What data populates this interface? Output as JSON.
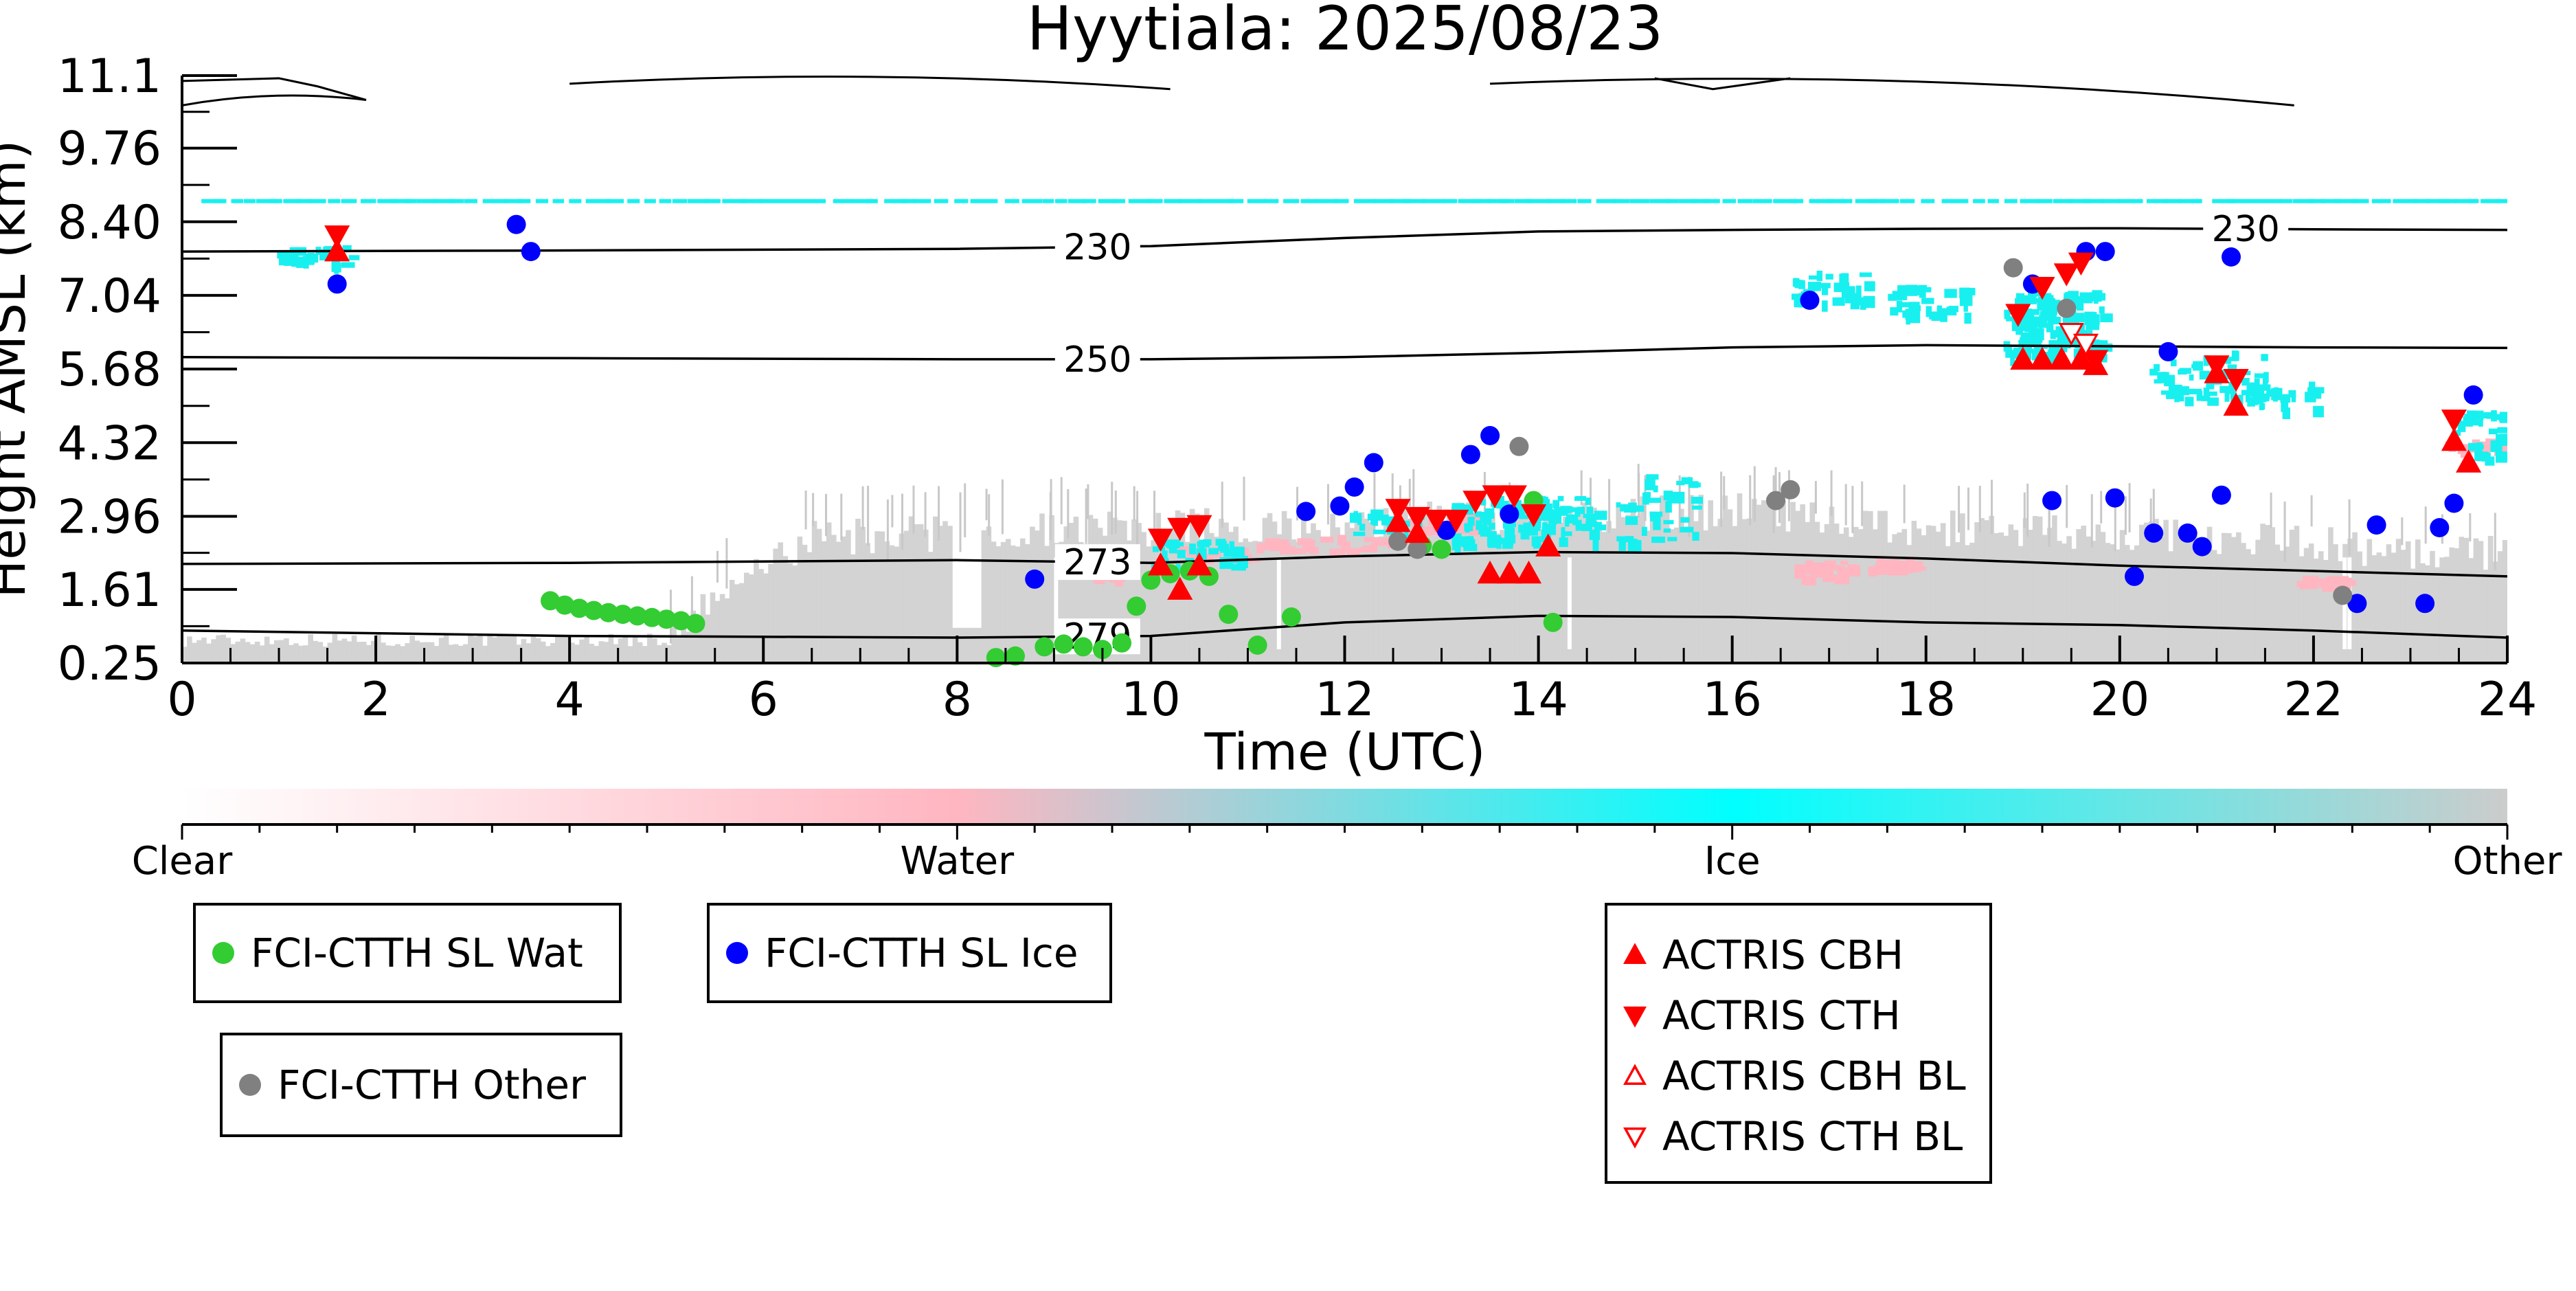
{
  "chart_data": {
    "type": "scatter",
    "title": "Hyytiala: 2025/08/23",
    "xlabel": "Time (UTC)",
    "ylabel": "Height AMSL (km)",
    "xlim": [
      0,
      24
    ],
    "ylim": [
      0.25,
      11.1
    ],
    "x_ticks": [
      0,
      2,
      4,
      6,
      8,
      10,
      12,
      14,
      16,
      18,
      20,
      22,
      24
    ],
    "y_ticks": [
      "0.25",
      "1.61",
      "2.96",
      "4.32",
      "5.68",
      "7.04",
      "8.40",
      "9.76",
      "11.1"
    ],
    "grid": false,
    "colorbar": {
      "labels": [
        "Clear",
        "Water",
        "Ice",
        "Other"
      ],
      "colors": [
        "#ffffff",
        "#ffb6c1",
        "#00ffff",
        "#cccccc"
      ]
    },
    "colors": {
      "water": "#ffb6c1",
      "ice": "#18f0f0",
      "other": "#d3d3d3",
      "fci_wat": "#33cc33",
      "fci_ice": "#0000ff",
      "fci_other": "#808080",
      "actris": "#ff0000"
    },
    "contours": [
      {
        "label": "230",
        "label_x": [
          9.45,
          21.3
        ],
        "x": [
          0,
          4,
          8,
          10,
          12,
          14,
          16,
          18,
          20,
          22,
          24
        ],
        "y": [
          7.85,
          7.87,
          7.9,
          7.95,
          8.1,
          8.22,
          8.25,
          8.27,
          8.28,
          8.26,
          8.25
        ]
      },
      {
        "label": "250",
        "label_x": [
          9.45
        ],
        "x": [
          0,
          4,
          8,
          10,
          12,
          14,
          16,
          18,
          20,
          22,
          24
        ],
        "y": [
          5.9,
          5.88,
          5.86,
          5.86,
          5.9,
          5.98,
          6.08,
          6.12,
          6.1,
          6.08,
          6.07
        ]
      },
      {
        "label": "273",
        "label_x": [
          9.45
        ],
        "x": [
          0,
          4,
          8,
          10,
          12,
          14,
          16,
          18,
          20,
          22,
          24
        ],
        "y": [
          2.08,
          2.1,
          2.15,
          2.1,
          2.22,
          2.3,
          2.28,
          2.18,
          2.05,
          1.95,
          1.85
        ]
      },
      {
        "label": "279",
        "label_x": [
          9.45
        ],
        "x": [
          0,
          4,
          8,
          10,
          12,
          14,
          16,
          18,
          20,
          22,
          24
        ],
        "y": [
          0.85,
          0.75,
          0.72,
          0.75,
          1.0,
          1.12,
          1.1,
          1.0,
          0.95,
          0.85,
          0.72
        ]
      }
    ],
    "series": [
      {
        "name": "FCI-CTTH SL Wat",
        "marker": "circle",
        "color": "#33cc33",
        "x": [
          3.8,
          3.95,
          4.1,
          4.25,
          4.4,
          4.55,
          4.7,
          4.85,
          5.0,
          5.15,
          5.3,
          8.4,
          8.6,
          8.9,
          9.1,
          9.3,
          9.5,
          9.7,
          9.85,
          10.0,
          10.2,
          10.4,
          10.6,
          10.8,
          11.1,
          11.45,
          12.8,
          13.0,
          13.95,
          14.15
        ],
        "y": [
          1.4,
          1.32,
          1.26,
          1.22,
          1.18,
          1.15,
          1.12,
          1.09,
          1.06,
          1.03,
          0.98,
          0.35,
          0.38,
          0.55,
          0.6,
          0.55,
          0.5,
          0.62,
          1.3,
          1.78,
          1.9,
          1.95,
          1.85,
          1.15,
          0.58,
          1.1,
          2.42,
          2.35,
          3.25,
          1.0
        ]
      },
      {
        "name": "FCI-CTTH SL Ice",
        "marker": "circle",
        "color": "#0000ff",
        "x": [
          1.6,
          3.45,
          3.6,
          8.8,
          11.6,
          11.95,
          12.1,
          12.3,
          13.05,
          13.3,
          13.5,
          13.7,
          16.8,
          19.1,
          19.3,
          19.65,
          19.85,
          19.95,
          20.15,
          20.35,
          20.5,
          20.7,
          20.85,
          21.05,
          21.15,
          22.45,
          22.65,
          23.15,
          23.3,
          23.45,
          23.65
        ],
        "y": [
          7.25,
          8.35,
          7.85,
          1.8,
          3.05,
          3.15,
          3.5,
          3.95,
          2.7,
          4.1,
          4.45,
          3.0,
          6.95,
          7.25,
          3.25,
          7.85,
          7.85,
          3.3,
          1.85,
          2.65,
          6.0,
          2.65,
          2.4,
          3.35,
          7.75,
          1.35,
          2.8,
          1.35,
          2.75,
          3.2,
          5.2
        ]
      },
      {
        "name": "FCI-CTTH Other",
        "marker": "circle",
        "color": "#808080",
        "x": [
          12.55,
          12.75,
          13.8,
          16.45,
          16.6,
          18.9,
          19.45,
          22.3
        ],
        "y": [
          2.5,
          2.35,
          4.25,
          3.25,
          3.45,
          7.55,
          6.8,
          1.5
        ]
      },
      {
        "name": "ACTRIS CBH",
        "marker": "triangle-up",
        "color": "#ff0000",
        "filled": true,
        "x": [
          1.6,
          10.1,
          10.3,
          10.5,
          12.55,
          12.75,
          13.5,
          13.7,
          13.9,
          14.1,
          19.0,
          19.2,
          19.4,
          19.6,
          19.75,
          21.0,
          21.2,
          23.45,
          23.6
        ],
        "y": [
          7.85,
          2.05,
          1.6,
          2.05,
          2.85,
          2.65,
          1.9,
          1.9,
          1.9,
          2.4,
          5.85,
          5.85,
          5.85,
          5.85,
          5.75,
          5.6,
          5.0,
          4.35,
          3.95
        ]
      },
      {
        "name": "ACTRIS CTH",
        "marker": "triangle-down",
        "color": "#ff0000",
        "filled": true,
        "x": [
          1.6,
          10.1,
          10.3,
          10.5,
          12.55,
          12.75,
          12.95,
          13.15,
          13.35,
          13.55,
          13.75,
          13.95,
          18.95,
          19.2,
          19.45,
          19.6,
          19.75,
          21.0,
          21.2,
          23.45
        ],
        "y": [
          8.15,
          2.55,
          2.75,
          2.8,
          3.1,
          2.95,
          2.9,
          2.9,
          3.25,
          3.35,
          3.35,
          3.0,
          6.7,
          7.2,
          7.45,
          7.65,
          5.85,
          5.75,
          5.5,
          4.75
        ]
      },
      {
        "name": "ACTRIS CBH BL",
        "marker": "triangle-up",
        "color": "#ff0000",
        "filled": false,
        "x": [],
        "y": []
      },
      {
        "name": "ACTRIS CTH BL",
        "marker": "triangle-down",
        "color": "#ff0000",
        "filled": false,
        "x": [
          19.5,
          19.65
        ],
        "y": [
          6.35,
          6.15
        ]
      }
    ],
    "legends": [
      {
        "entries": [
          "FCI-CTTH SL Wat"
        ]
      },
      {
        "entries": [
          "FCI-CTTH SL Ice"
        ]
      },
      {
        "entries": [
          "FCI-CTTH Other"
        ]
      },
      {
        "entries": [
          "ACTRIS CBH",
          "ACTRIS CTH",
          "ACTRIS CBH BL",
          "ACTRIS CTH BL"
        ]
      }
    ]
  }
}
